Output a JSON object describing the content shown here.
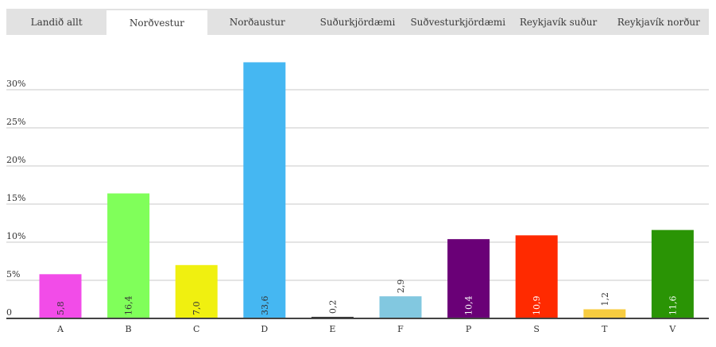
{
  "tabs": [
    {
      "label": "Landið allt",
      "active": false
    },
    {
      "label": "Norðvestur",
      "active": true
    },
    {
      "label": "Norðaustur",
      "active": false
    },
    {
      "label": "Suðurkjördæmi",
      "active": false
    },
    {
      "label": "Suðvesturkjördæmi",
      "active": false
    },
    {
      "label": "Reykjavík suður",
      "active": false
    },
    {
      "label": "Reykjavík norður",
      "active": false
    }
  ],
  "chart_data": {
    "type": "bar",
    "title": "",
    "xlabel": "",
    "ylabel": "",
    "ylim": [
      0,
      35
    ],
    "yticks": [
      {
        "value": 0,
        "label": "0"
      },
      {
        "value": 5,
        "label": "5%"
      },
      {
        "value": 10,
        "label": "10%"
      },
      {
        "value": 15,
        "label": "15%"
      },
      {
        "value": 20,
        "label": "20%"
      },
      {
        "value": 25,
        "label": "25%"
      },
      {
        "value": 30,
        "label": "30%"
      }
    ],
    "grid": true,
    "categories": [
      "A",
      "B",
      "C",
      "D",
      "E",
      "F",
      "P",
      "S",
      "T",
      "V"
    ],
    "values": [
      5.8,
      16.4,
      7.0,
      33.6,
      0.2,
      2.9,
      10.4,
      10.9,
      1.2,
      11.6
    ],
    "value_labels": [
      "5,8",
      "16,4",
      "7,0",
      "33,6",
      "0,2",
      "2,9",
      "10,4",
      "10,9",
      "1,2",
      "11,6"
    ],
    "colors": [
      "#f24ce8",
      "#80ff5a",
      "#f0f010",
      "#45b7f2",
      "#333333",
      "#82c8e0",
      "#6a0077",
      "#ff2a00",
      "#f7cc40",
      "#2a9405"
    ],
    "label_colors": [
      "#333333",
      "#333333",
      "#333333",
      "#333333",
      "#333333",
      "#333333",
      "#ffffff",
      "#ffffff",
      "#333333",
      "#ffffff"
    ]
  }
}
